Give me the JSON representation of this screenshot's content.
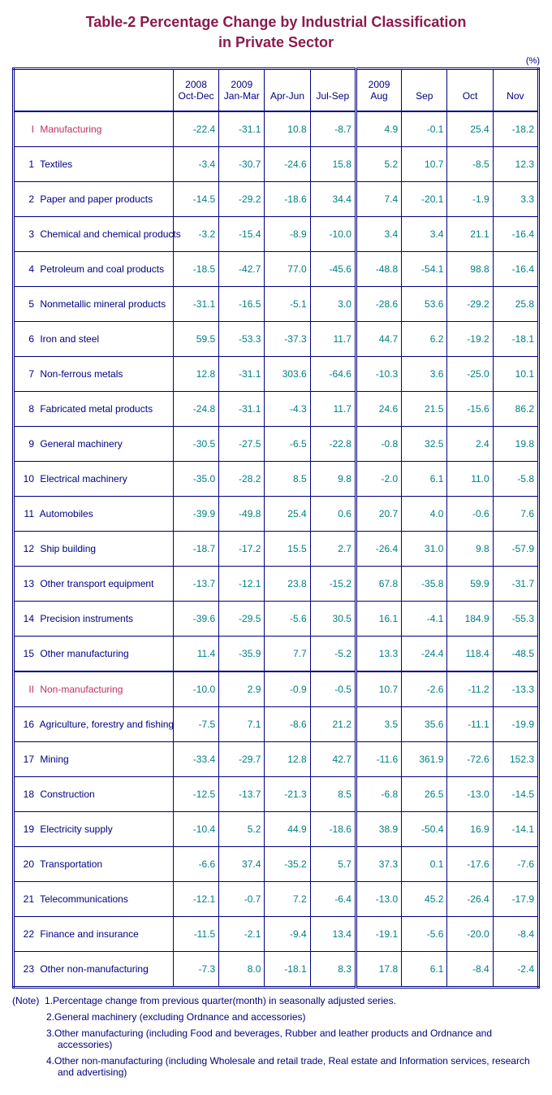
{
  "title_line1": "Table-2   Percentage Change by Industrial Classification",
  "title_line2": "in Private Sector",
  "unit": "(%)",
  "headers": {
    "c1a": "2008",
    "c1b": "Oct-Dec",
    "c2a": "2009",
    "c2b": "Jan-Mar",
    "c3a": "",
    "c3b": "Apr-Jun",
    "c4a": "",
    "c4b": "Jul-Sep",
    "c5a": "2009",
    "c5b": "Aug",
    "c6a": "",
    "c6b": "Sep",
    "c7a": "",
    "c7b": "Oct",
    "c8a": "",
    "c8b": "Nov"
  },
  "rows": [
    {
      "section": true,
      "idx": "I",
      "label": "Manufacturing",
      "v": [
        "-22.4",
        "-31.1",
        "10.8",
        "-8.7",
        "4.9",
        "-0.1",
        "25.4",
        "-18.2"
      ]
    },
    {
      "idx": "1",
      "label": "Textiles",
      "v": [
        "-3.4",
        "-30.7",
        "-24.6",
        "15.8",
        "5.2",
        "10.7",
        "-8.5",
        "12.3"
      ]
    },
    {
      "idx": "2",
      "label": "Paper and paper products",
      "v": [
        "-14.5",
        "-29.2",
        "-18.6",
        "34.4",
        "7.4",
        "-20.1",
        "-1.9",
        "3.3"
      ]
    },
    {
      "idx": "3",
      "label": "Chemical and chemical products",
      "v": [
        "-3.2",
        "-15.4",
        "-8.9",
        "-10.0",
        "3.4",
        "3.4",
        "21.1",
        "-16.4"
      ]
    },
    {
      "idx": "4",
      "label": "Petroleum and coal products",
      "v": [
        "-18.5",
        "-42.7",
        "77.0",
        "-45.6",
        "-48.8",
        "-54.1",
        "98.8",
        "-16.4"
      ]
    },
    {
      "idx": "5",
      "label": "Nonmetallic mineral products",
      "v": [
        "-31.1",
        "-16.5",
        "-5.1",
        "3.0",
        "-28.6",
        "53.6",
        "-29.2",
        "25.8"
      ]
    },
    {
      "idx": "6",
      "label": "Iron and steel",
      "v": [
        "59.5",
        "-53.3",
        "-37.3",
        "11.7",
        "44.7",
        "6.2",
        "-19.2",
        "-18.1"
      ]
    },
    {
      "idx": "7",
      "label": "Non-ferrous metals",
      "v": [
        "12.8",
        "-31.1",
        "303.6",
        "-64.6",
        "-10.3",
        "3.6",
        "-25.0",
        "10.1"
      ]
    },
    {
      "idx": "8",
      "label": "Fabricated metal products",
      "v": [
        "-24.8",
        "-31.1",
        "-4.3",
        "11.7",
        "24.6",
        "21.5",
        "-15.6",
        "86.2"
      ]
    },
    {
      "idx": "9",
      "label": "General machinery",
      "v": [
        "-30.5",
        "-27.5",
        "-6.5",
        "-22.8",
        "-0.8",
        "32.5",
        "2.4",
        "19.8"
      ]
    },
    {
      "idx": "10",
      "label": "Electrical machinery",
      "v": [
        "-35.0",
        "-28.2",
        "8.5",
        "9.8",
        "-2.0",
        "6.1",
        "11.0",
        "-5.8"
      ]
    },
    {
      "idx": "11",
      "label": "Automobiles",
      "v": [
        "-39.9",
        "-49.8",
        "25.4",
        "0.6",
        "20.7",
        "4.0",
        "-0.6",
        "7.6"
      ]
    },
    {
      "idx": "12",
      "label": "Ship building",
      "v": [
        "-18.7",
        "-17.2",
        "15.5",
        "2.7",
        "-26.4",
        "31.0",
        "9.8",
        "-57.9"
      ]
    },
    {
      "idx": "13",
      "label": "Other transport equipment",
      "v": [
        "-13.7",
        "-12.1",
        "23.8",
        "-15.2",
        "67.8",
        "-35.8",
        "59.9",
        "-31.7"
      ]
    },
    {
      "idx": "14",
      "label": "Precision instruments",
      "v": [
        "-39.6",
        "-29.5",
        "-5.6",
        "30.5",
        "16.1",
        "-4.1",
        "184.9",
        "-55.3"
      ]
    },
    {
      "idx": "15",
      "label": "Other manufacturing",
      "v": [
        "11.4",
        "-35.9",
        "7.7",
        "-5.2",
        "13.3",
        "-24.4",
        "118.4",
        "-48.5"
      ]
    },
    {
      "section": true,
      "idx": "II",
      "label": "Non-manufacturing",
      "v": [
        "-10.0",
        "2.9",
        "-0.9",
        "-0.5",
        "10.7",
        "-2.6",
        "-11.2",
        "-13.3"
      ]
    },
    {
      "idx": "16",
      "label": "Agriculture, forestry and fishing",
      "v": [
        "-7.5",
        "7.1",
        "-8.6",
        "21.2",
        "3.5",
        "35.6",
        "-11.1",
        "-19.9"
      ]
    },
    {
      "idx": "17",
      "label": "Mining",
      "v": [
        "-33.4",
        "-29.7",
        "12.8",
        "42.7",
        "-11.6",
        "361.9",
        "-72.6",
        "152.3"
      ]
    },
    {
      "idx": "18",
      "label": "Construction",
      "v": [
        "-12.5",
        "-13.7",
        "-21.3",
        "8.5",
        "-6.8",
        "26.5",
        "-13.0",
        "-14.5"
      ]
    },
    {
      "idx": "19",
      "label": "Electricity supply",
      "v": [
        "-10.4",
        "5.2",
        "44.9",
        "-18.6",
        "38.9",
        "-50.4",
        "16.9",
        "-14.1"
      ]
    },
    {
      "idx": "20",
      "label": "Transportation",
      "v": [
        "-6.6",
        "37.4",
        "-35.2",
        "5.7",
        "37.3",
        "0.1",
        "-17.6",
        "-7.6"
      ]
    },
    {
      "idx": "21",
      "label": "Telecommunications",
      "v": [
        "-12.1",
        "-0.7",
        "7.2",
        "-6.4",
        "-13.0",
        "45.2",
        "-26.4",
        "-17.9"
      ]
    },
    {
      "idx": "22",
      "label": "Finance and insurance",
      "v": [
        "-11.5",
        "-2.1",
        "-9.4",
        "13.4",
        "-19.1",
        "-5.6",
        "-20.0",
        "-8.4"
      ]
    },
    {
      "idx": "23",
      "label": "Other non-manufacturing",
      "v": [
        "-7.3",
        "8.0",
        "-18.1",
        "8.3",
        "17.8",
        "6.1",
        "-8.4",
        "-2.4"
      ]
    }
  ],
  "notes": {
    "prefix": "(Note)",
    "items": [
      "1.Percentage change from previous quarter(month) in seasonally adjusted series.",
      "2.General machinery (excluding Ordnance and accessories)",
      "3.Other manufacturing (including Food and beverages, Rubber and leather products and Ordnance and accessories)",
      "4.Other non-manufacturing (including Wholesale and retail trade, Real estate and Information services, research and advertising)"
    ]
  }
}
